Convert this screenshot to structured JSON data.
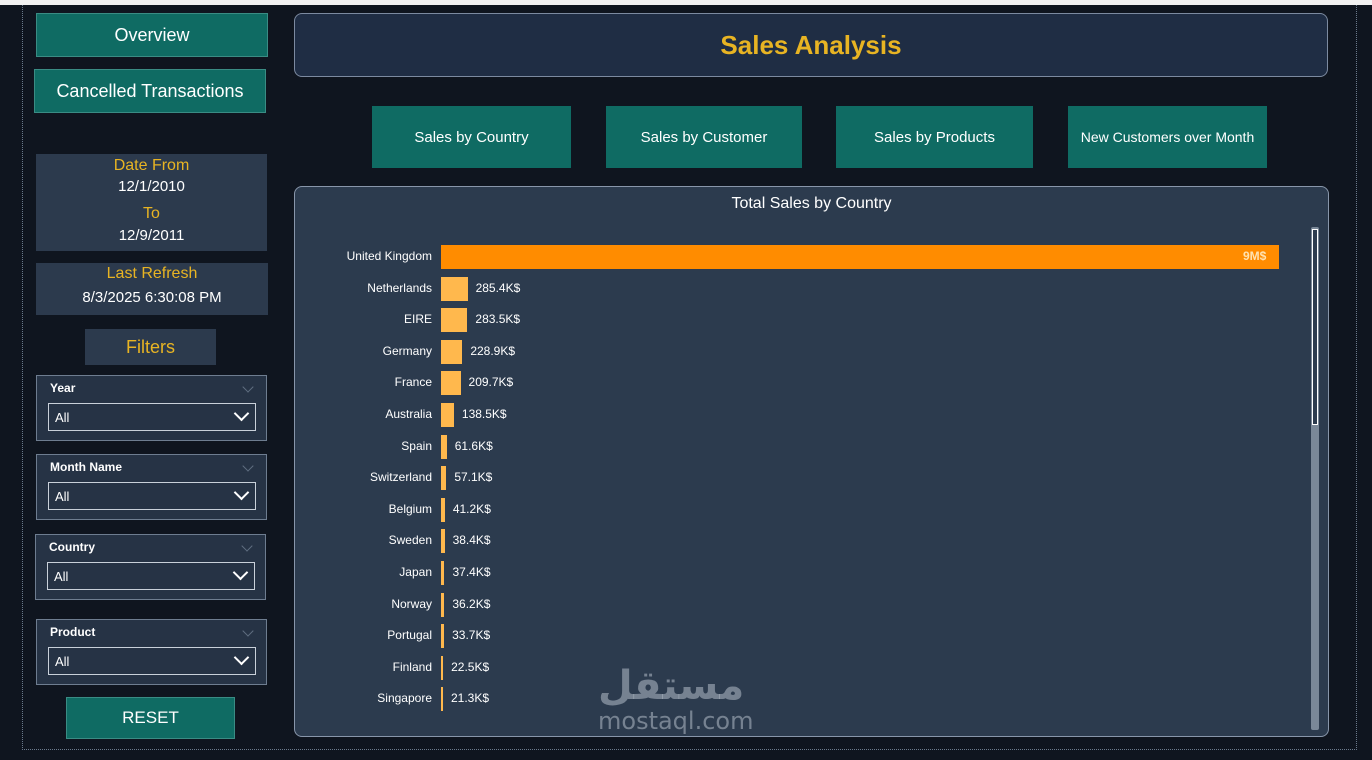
{
  "nav": {
    "overview_label": "Overview",
    "cancelled_label": "Cancelled Transactions",
    "reset_label": "RESET"
  },
  "dates": {
    "from_label": "Date From",
    "from_value": "12/1/2010",
    "to_label": "To",
    "to_value": "12/9/2011"
  },
  "refresh": {
    "label": "Last Refresh",
    "value": "8/3/2025 6:30:08 PM"
  },
  "filters": {
    "heading": "Filters",
    "items": [
      {
        "title": "Year",
        "value": "All"
      },
      {
        "title": "Month Name",
        "value": "All"
      },
      {
        "title": "Country",
        "value": "All"
      },
      {
        "title": "Product",
        "value": "All"
      }
    ]
  },
  "header": {
    "title": "Sales Analysis"
  },
  "tabs": [
    {
      "label": "Sales by Country"
    },
    {
      "label": "Sales by Customer"
    },
    {
      "label": "Sales by Products"
    },
    {
      "label": "New Customers over Month"
    }
  ],
  "colors": {
    "accent": "#e8b423",
    "teal": "#0f6b63",
    "bar_top": "#ff8c00",
    "bar": "#ffb84d"
  },
  "watermark": {
    "arabic": "مستقل",
    "latin": "mostaql.com"
  },
  "chart_data": {
    "type": "bar",
    "orientation": "horizontal",
    "title": "Total Sales by Country",
    "xlabel": "",
    "ylabel": "",
    "max_value": 9000000,
    "categories": [
      "United Kingdom",
      "Netherlands",
      "EIRE",
      "Germany",
      "France",
      "Australia",
      "Spain",
      "Switzerland",
      "Belgium",
      "Sweden",
      "Japan",
      "Norway",
      "Portugal",
      "Finland",
      "Singapore"
    ],
    "values": [
      9000000,
      285400,
      283500,
      228900,
      209700,
      138500,
      61600,
      57100,
      41200,
      38400,
      37400,
      36200,
      33700,
      22500,
      21300
    ],
    "labels": [
      "9M$",
      "285.4K$",
      "283.5K$",
      "228.9K$",
      "209.7K$",
      "138.5K$",
      "61.6K$",
      "57.1K$",
      "41.2K$",
      "38.4K$",
      "37.4K$",
      "36.2K$",
      "33.7K$",
      "22.5K$",
      "21.3K$"
    ]
  }
}
